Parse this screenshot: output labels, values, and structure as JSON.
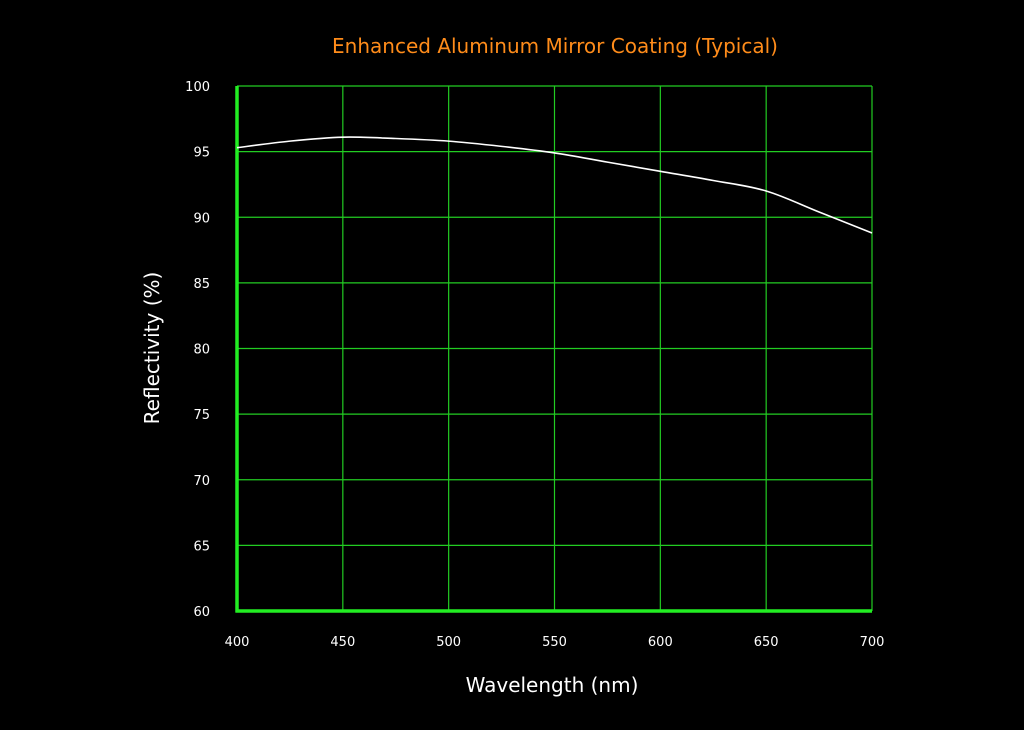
{
  "chart_data": {
    "type": "line",
    "title": "Enhanced Aluminum Mirror Coating (Typical)",
    "xlabel": "Wavelength (nm)",
    "ylabel": "Reflectivity (%)",
    "xlim": [
      400,
      700
    ],
    "ylim": [
      60,
      100
    ],
    "x_ticks": [
      400,
      450,
      500,
      550,
      600,
      650,
      700
    ],
    "y_ticks": [
      60,
      65,
      70,
      75,
      80,
      85,
      90,
      95,
      100
    ],
    "grid": true,
    "series": [
      {
        "x": [
          400,
          425,
          450,
          475,
          500,
          525,
          550,
          575,
          600,
          625,
          650,
          675,
          700
        ],
        "y": [
          95.3,
          95.8,
          96.1,
          96.0,
          95.8,
          95.4,
          94.9,
          94.2,
          93.5,
          92.8,
          92.0,
          90.4,
          88.8
        ]
      }
    ],
    "colors": {
      "background": "#000000",
      "grid": "#22cc22",
      "axis": "#22ee22",
      "line": "#ffffff",
      "title": "#ff8c1a",
      "text": "#ffffff"
    }
  }
}
